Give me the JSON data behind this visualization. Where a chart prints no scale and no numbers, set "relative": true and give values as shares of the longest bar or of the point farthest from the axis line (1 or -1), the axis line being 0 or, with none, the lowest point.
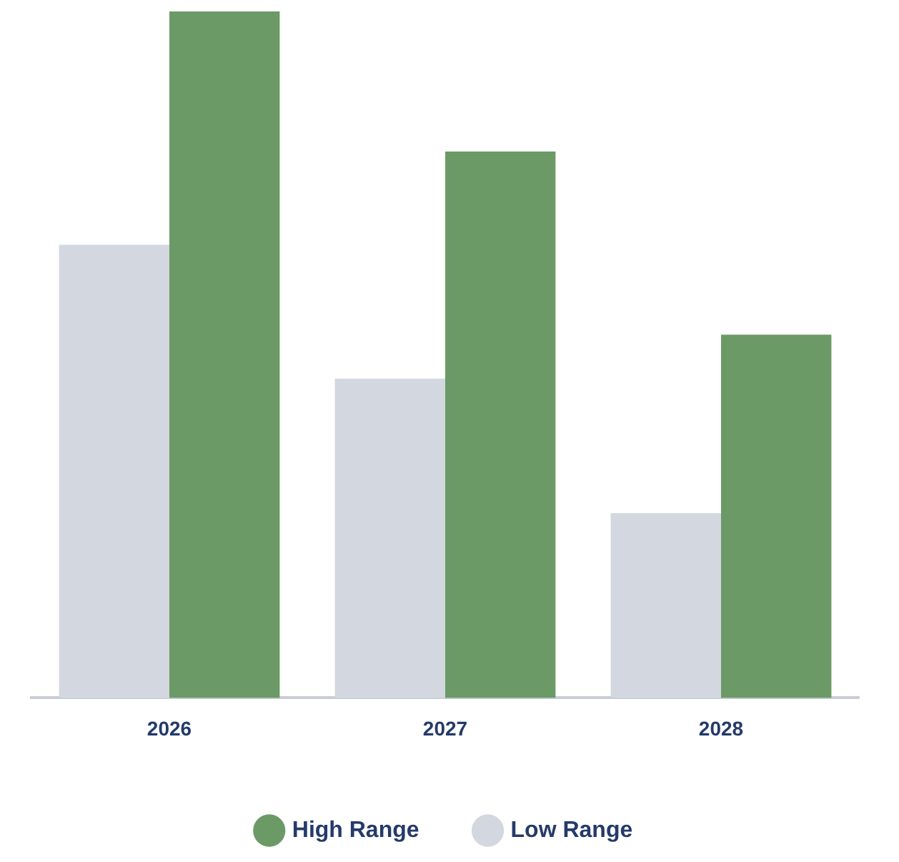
{
  "chart_data": {
    "type": "bar",
    "relative": true,
    "categories": [
      "2026",
      "2027",
      "2028"
    ],
    "series": [
      {
        "name": "Low Range",
        "color": "#d3d7df",
        "values": [
          0.66,
          0.465,
          0.269
        ]
      },
      {
        "name": "High Range",
        "color": "#6b9a66",
        "values": [
          1,
          0.796,
          0.529
        ]
      }
    ],
    "legend": "bottom",
    "grid": false
  }
}
